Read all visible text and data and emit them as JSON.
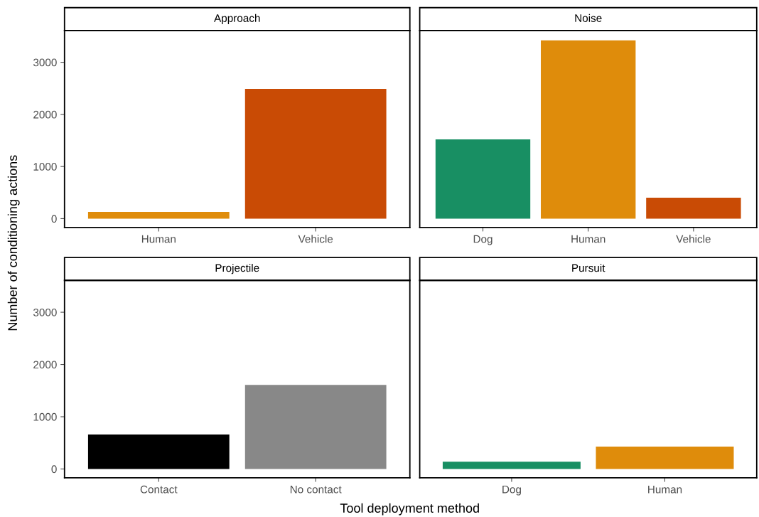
{
  "chart_data": [
    {
      "type": "bar",
      "title": "Approach",
      "categories": [
        "Human",
        "Vehicle"
      ],
      "ylabel": "Number of conditioning actions",
      "xlabel": "Tool deployment method",
      "ylim": [
        -170,
        3610
      ],
      "yticks": [
        0,
        1000,
        2000,
        3000
      ],
      "grid": false,
      "legend": false,
      "series": [
        {
          "values": [
            130,
            2490
          ],
          "colors": [
            "#df8c0b",
            "#c94b05"
          ]
        }
      ]
    },
    {
      "type": "bar",
      "title": "Noise",
      "categories": [
        "Dog",
        "Human",
        "Vehicle"
      ],
      "ylim": [
        -170,
        3610
      ],
      "yticks": [
        0,
        1000,
        2000,
        3000
      ],
      "tick_labels": "x",
      "grid": false,
      "legend": false,
      "series": [
        {
          "values": [
            1520,
            3420,
            400
          ],
          "colors": [
            "#188f63",
            "#df8c0b",
            "#c94b05"
          ]
        }
      ]
    },
    {
      "type": "bar",
      "title": "Projectile",
      "categories": [
        "Contact",
        "No contact"
      ],
      "ylim": [
        -170,
        3610
      ],
      "yticks": [
        0,
        1000,
        2000,
        3000
      ],
      "grid": false,
      "legend": false,
      "series": [
        {
          "values": [
            660,
            1610
          ],
          "colors": [
            "#000000",
            "#888888"
          ]
        }
      ]
    },
    {
      "type": "bar",
      "title": "Pursuit",
      "categories": [
        "Dog",
        "Human"
      ],
      "ylim": [
        -170,
        3610
      ],
      "yticks": [
        0,
        1000,
        2000,
        3000
      ],
      "tick_labels": "x",
      "grid": false,
      "legend": false,
      "series": [
        {
          "values": [
            140,
            430
          ],
          "colors": [
            "#188f63",
            "#df8c0b"
          ]
        }
      ]
    }
  ]
}
